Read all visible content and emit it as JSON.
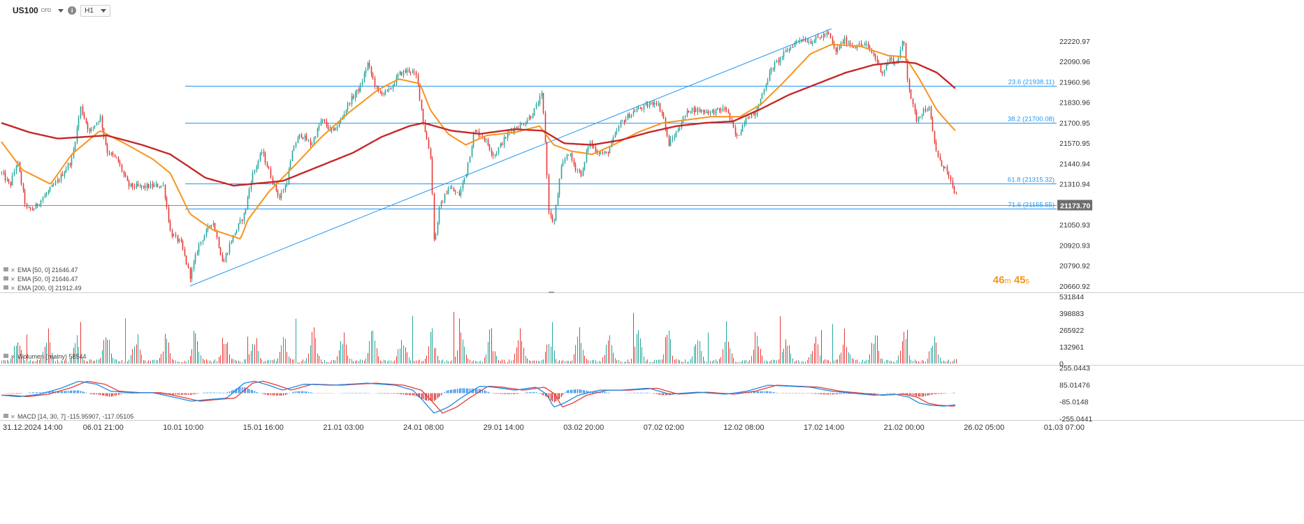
{
  "instrument": {
    "symbol": "US100",
    "type": "CFD",
    "timeframe": "H1",
    "info_icon": "info-icon",
    "timer_minutes": "46",
    "timer_m": "m",
    "timer_seconds": "45",
    "timer_s": "s"
  },
  "colors": {
    "up": "#26a69a",
    "down": "#e53935",
    "ema50": "#f7941d",
    "ema200": "#c62828",
    "fib": "#2196f3",
    "macd": "#1e88e5",
    "signal": "#e53935",
    "hist_pos": "#1e88e5",
    "hist_neg": "#d32f2f",
    "last_price_bg": "#6d6d6d"
  },
  "indicators": {
    "ema_labels": [
      "EMA [50, 0] 21646.47",
      "EMA [50, 0] 21646.47",
      "EMA [200, 0] 21912.49"
    ],
    "volume_label": "Wolumen  (realny)  58544",
    "macd_label": "MACD [14, 30, 7] -115.95907, -117.05105"
  },
  "last_price": "21173.70",
  "chart_data": [
    {
      "type": "candlestick",
      "title": "US100",
      "ylim": [
        20620,
        22350
      ],
      "y_ticks": [
        "22220.97",
        "22090.96",
        "21960.96",
        "21830.96",
        "21700.95",
        "21570.95",
        "21440.94",
        "21310.94",
        "21180.94",
        "21050.93",
        "20920.93",
        "20790.92",
        "20660.92"
      ],
      "x_ticks": [
        "31.12.2024  14:00",
        "06.01  21:00",
        "10.01  10:00",
        "15.01  16:00",
        "21.01  03:00",
        "24.01  08:00",
        "29.01  14:00",
        "03.02  20:00",
        "07.02  02:00",
        "12.02  08:00",
        "17.02  14:00",
        "21.02  00:00",
        "26.02  05:00",
        "01.03  07:00"
      ],
      "candle_count": 530,
      "price_path": [
        [
          0,
          21380
        ],
        [
          12,
          21300
        ],
        [
          22,
          21460
        ],
        [
          35,
          21150
        ],
        [
          45,
          21150
        ],
        [
          60,
          21230
        ],
        [
          80,
          21330
        ],
        [
          100,
          21470
        ],
        [
          112,
          21800
        ],
        [
          125,
          21640
        ],
        [
          140,
          21740
        ],
        [
          150,
          21520
        ],
        [
          165,
          21460
        ],
        [
          180,
          21300
        ],
        [
          200,
          21290
        ],
        [
          215,
          21300
        ],
        [
          230,
          21300
        ],
        [
          240,
          21000
        ],
        [
          255,
          20930
        ],
        [
          268,
          20720
        ],
        [
          280,
          20920
        ],
        [
          300,
          21080
        ],
        [
          315,
          20800
        ],
        [
          325,
          20940
        ],
        [
          345,
          21120
        ],
        [
          355,
          21350
        ],
        [
          370,
          21520
        ],
        [
          385,
          21330
        ],
        [
          395,
          21220
        ],
        [
          405,
          21320
        ],
        [
          415,
          21550
        ],
        [
          425,
          21630
        ],
        [
          440,
          21560
        ],
        [
          455,
          21720
        ],
        [
          470,
          21640
        ],
        [
          480,
          21700
        ],
        [
          495,
          21840
        ],
        [
          510,
          21930
        ],
        [
          520,
          22080
        ],
        [
          535,
          21890
        ],
        [
          550,
          21900
        ],
        [
          565,
          22010
        ],
        [
          580,
          22040
        ],
        [
          590,
          21990
        ],
        [
          600,
          21690
        ],
        [
          610,
          21470
        ],
        [
          615,
          20920
        ],
        [
          622,
          21150
        ],
        [
          635,
          21290
        ],
        [
          650,
          21240
        ],
        [
          660,
          21380
        ],
        [
          672,
          21650
        ],
        [
          685,
          21610
        ],
        [
          700,
          21490
        ],
        [
          712,
          21580
        ],
        [
          725,
          21660
        ],
        [
          740,
          21690
        ],
        [
          755,
          21760
        ],
        [
          768,
          21880
        ],
        [
          772,
          21640
        ],
        [
          778,
          21120
        ],
        [
          785,
          21060
        ],
        [
          795,
          21400
        ],
        [
          805,
          21520
        ],
        [
          815,
          21420
        ],
        [
          825,
          21370
        ],
        [
          835,
          21580
        ],
        [
          845,
          21520
        ],
        [
          860,
          21500
        ],
        [
          880,
          21700
        ],
        [
          900,
          21780
        ],
        [
          918,
          21810
        ],
        [
          930,
          21840
        ],
        [
          940,
          21750
        ],
        [
          948,
          21560
        ],
        [
          958,
          21630
        ],
        [
          968,
          21720
        ],
        [
          978,
          21790
        ],
        [
          990,
          21780
        ],
        [
          1010,
          21770
        ],
        [
          1030,
          21790
        ],
        [
          1045,
          21600
        ],
        [
          1058,
          21740
        ],
        [
          1072,
          21760
        ],
        [
          1085,
          21940
        ],
        [
          1095,
          22050
        ],
        [
          1110,
          22130
        ],
        [
          1125,
          22200
        ],
        [
          1135,
          22240
        ],
        [
          1150,
          22220
        ],
        [
          1165,
          22250
        ],
        [
          1175,
          22270
        ],
        [
          1185,
          22150
        ],
        [
          1198,
          22230
        ],
        [
          1210,
          22190
        ],
        [
          1228,
          22200
        ],
        [
          1240,
          22130
        ],
        [
          1252,
          22020
        ],
        [
          1262,
          22110
        ],
        [
          1272,
          22080
        ],
        [
          1282,
          22230
        ],
        [
          1288,
          21980
        ],
        [
          1294,
          21830
        ],
        [
          1300,
          21720
        ],
        [
          1310,
          21780
        ],
        [
          1318,
          21800
        ],
        [
          1325,
          21590
        ],
        [
          1333,
          21450
        ],
        [
          1342,
          21410
        ],
        [
          1350,
          21300
        ],
        [
          1356,
          21250
        ],
        [
          1359,
          21173
        ]
      ],
      "series": [
        {
          "name": "EMA [50, 0]",
          "values_path": [
            [
              0,
              21580
            ],
            [
              30,
              21400
            ],
            [
              70,
              21310
            ],
            [
              100,
              21500
            ],
            [
              140,
              21650
            ],
            [
              175,
              21570
            ],
            [
              215,
              21470
            ],
            [
              240,
              21380
            ],
            [
              268,
              21120
            ],
            [
              300,
              21020
            ],
            [
              340,
              20960
            ],
            [
              350,
              21080
            ],
            [
              380,
              21260
            ],
            [
              415,
              21420
            ],
            [
              455,
              21610
            ],
            [
              495,
              21770
            ],
            [
              535,
              21910
            ],
            [
              565,
              21980
            ],
            [
              595,
              21950
            ],
            [
              610,
              21780
            ],
            [
              635,
              21630
            ],
            [
              660,
              21560
            ],
            [
              690,
              21620
            ],
            [
              730,
              21640
            ],
            [
              765,
              21680
            ],
            [
              785,
              21560
            ],
            [
              810,
              21520
            ],
            [
              840,
              21500
            ],
            [
              870,
              21560
            ],
            [
              905,
              21640
            ],
            [
              940,
              21700
            ],
            [
              975,
              21720
            ],
            [
              1010,
              21740
            ],
            [
              1050,
              21740
            ],
            [
              1080,
              21820
            ],
            [
              1110,
              21950
            ],
            [
              1150,
              22140
            ],
            [
              1180,
              22200
            ],
            [
              1220,
              22190
            ],
            [
              1260,
              22130
            ],
            [
              1285,
              22120
            ],
            [
              1305,
              21980
            ],
            [
              1330,
              21780
            ],
            [
              1356,
              21650
            ]
          ]
        },
        {
          "name": "EMA [200, 0]",
          "values_path": [
            [
              0,
              21700
            ],
            [
              40,
              21640
            ],
            [
              80,
              21600
            ],
            [
              150,
              21620
            ],
            [
              200,
              21560
            ],
            [
              240,
              21500
            ],
            [
              290,
              21350
            ],
            [
              330,
              21300
            ],
            [
              400,
              21330
            ],
            [
              450,
              21420
            ],
            [
              500,
              21510
            ],
            [
              540,
              21610
            ],
            [
              580,
              21680
            ],
            [
              600,
              21700
            ],
            [
              640,
              21650
            ],
            [
              680,
              21630
            ],
            [
              730,
              21660
            ],
            [
              770,
              21650
            ],
            [
              800,
              21570
            ],
            [
              840,
              21560
            ],
            [
              880,
              21590
            ],
            [
              920,
              21640
            ],
            [
              960,
              21680
            ],
            [
              1000,
              21700
            ],
            [
              1040,
              21710
            ],
            [
              1080,
              21790
            ],
            [
              1120,
              21880
            ],
            [
              1160,
              21950
            ],
            [
              1200,
              22020
            ],
            [
              1240,
              22070
            ],
            [
              1280,
              22090
            ],
            [
              1300,
              22080
            ],
            [
              1330,
              22020
            ],
            [
              1356,
              21920
            ]
          ]
        }
      ],
      "fibonacci": {
        "levels": [
          {
            "label": "23.6 (21938.11)",
            "price": 21938.11
          },
          {
            "label": "38.2 (21700.08)",
            "price": 21700.08
          },
          {
            "label": "61.8 (21315.32)",
            "price": 21315.32
          },
          {
            "label": "71.6 (21155.55)",
            "price": 21155.55
          }
        ],
        "trendline": {
          "from": [
            268,
            20660
          ],
          "to": [
            1180,
            22300
          ]
        }
      },
      "last_price": 21173.7
    },
    {
      "type": "bar",
      "title": "Wolumen (realny)",
      "ylim": [
        0,
        531844
      ],
      "y_ticks": [
        "531844",
        "398883",
        "265922",
        "132961",
        "0"
      ],
      "last_value": 58544
    },
    {
      "type": "line",
      "title": "MACD [14, 30, 7]",
      "ylim": [
        -255.0441,
        255.0443
      ],
      "y_ticks": [
        "255.0443",
        "85.01476",
        "-85.0148",
        "-255.0441"
      ],
      "macd": -115.95907,
      "signal": -117.05105,
      "macd_path": [
        [
          0,
          -20
        ],
        [
          25,
          -35
        ],
        [
          55,
          -10
        ],
        [
          85,
          50
        ],
        [
          110,
          120
        ],
        [
          135,
          90
        ],
        [
          155,
          20
        ],
        [
          185,
          5
        ],
        [
          215,
          5
        ],
        [
          245,
          -40
        ],
        [
          270,
          -80
        ],
        [
          300,
          -60
        ],
        [
          320,
          -50
        ],
        [
          345,
          100
        ],
        [
          360,
          120
        ],
        [
          380,
          80
        ],
        [
          400,
          30
        ],
        [
          430,
          90
        ],
        [
          470,
          80
        ],
        [
          520,
          100
        ],
        [
          560,
          80
        ],
        [
          585,
          30
        ],
        [
          600,
          -80
        ],
        [
          615,
          -200
        ],
        [
          635,
          -140
        ],
        [
          655,
          -40
        ],
        [
          680,
          70
        ],
        [
          700,
          60
        ],
        [
          730,
          30
        ],
        [
          760,
          60
        ],
        [
          775,
          -10
        ],
        [
          785,
          -140
        ],
        [
          800,
          -100
        ],
        [
          820,
          -20
        ],
        [
          850,
          30
        ],
        [
          880,
          30
        ],
        [
          920,
          50
        ],
        [
          950,
          -10
        ],
        [
          990,
          10
        ],
        [
          1030,
          -10
        ],
        [
          1060,
          20
        ],
        [
          1090,
          80
        ],
        [
          1120,
          70
        ],
        [
          1150,
          60
        ],
        [
          1180,
          20
        ],
        [
          1210,
          0
        ],
        [
          1240,
          -20
        ],
        [
          1270,
          -10
        ],
        [
          1290,
          -40
        ],
        [
          1305,
          -100
        ],
        [
          1320,
          -120
        ],
        [
          1340,
          -130
        ],
        [
          1356,
          -116
        ]
      ]
    }
  ]
}
